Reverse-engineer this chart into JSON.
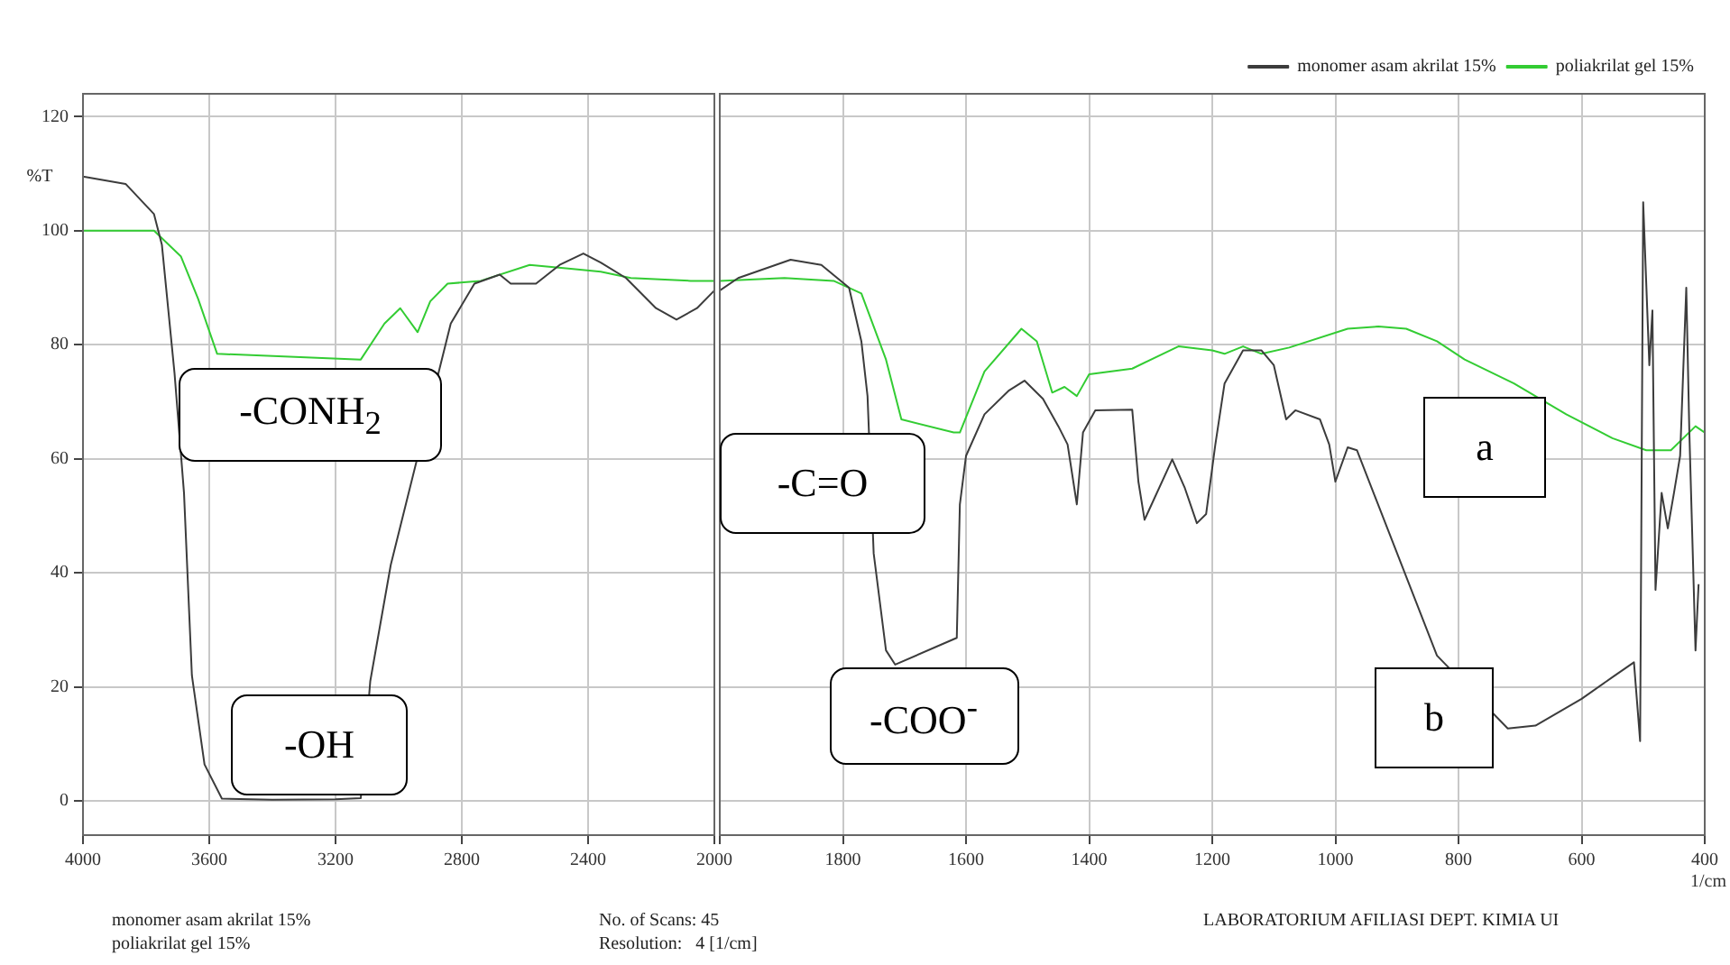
{
  "chart_data": [
    {
      "type": "line",
      "ylabel": "%T",
      "xlim": [
        4000,
        2000
      ],
      "xticks": [
        4000,
        3600,
        3200,
        2800,
        2400,
        2000
      ],
      "ylim": [
        -6,
        124
      ],
      "yticks": [
        0,
        20,
        40,
        60,
        80,
        100,
        120
      ],
      "grid": true,
      "marker": "none",
      "line_style": "solid",
      "series": [
        {
          "color": "#3c3c3c",
          "x": [
            4000,
            3865,
            3775,
            3750,
            3710,
            3680,
            3655,
            3615,
            3560,
            3400,
            3200,
            3120,
            3090,
            3025,
            2950,
            2890,
            2835,
            2760,
            2680,
            2645,
            2565,
            2490,
            2415,
            2360,
            2280,
            2185,
            2120,
            2055,
            2000
          ],
          "values": [
            109.5,
            108.2,
            102.9,
            97.5,
            75,
            54,
            22,
            6.4,
            0.4,
            0.2,
            0.3,
            0.5,
            21,
            41.4,
            null,
            null,
            83.7,
            90.7,
            92.3,
            90.7,
            90.7,
            94,
            96,
            94.4,
            91.7,
            86.4,
            84.4,
            86.4,
            89.5
          ]
        },
        {
          "color": "#33cc33",
          "x": [
            4000,
            3775,
            3690,
            3635,
            3575,
            3450,
            3300,
            3200,
            3120,
            3045,
            2995,
            2940,
            2900,
            2845,
            2740,
            2585,
            2455,
            2360,
            2265,
            2075,
            2000
          ],
          "values": [
            100,
            100,
            95.5,
            88,
            78.4,
            null,
            null,
            null,
            77.4,
            83.7,
            86.4,
            82.2,
            87.6,
            90.7,
            91.2,
            94,
            93.3,
            92.8,
            91.7,
            91.2,
            91.2
          ]
        }
      ],
      "annotations": [
        "-CONH$_{2}$",
        "-OH",
        "monomer asam akrilat 15%",
        "poliakrilat gel 15%",
        "No. of Scans: 45",
        "Resolution:   4 [1/cm]"
      ]
    },
    {
      "type": "line",
      "xlabel": "1/cm",
      "xlim": [
        2000,
        400
      ],
      "xticks": [
        {
          "value": 2000,
          "label": null
        },
        1800,
        1600,
        1400,
        1200,
        1000,
        800,
        600,
        400
      ],
      "ylim": [
        -6,
        124
      ],
      "yticks": [
        0,
        20,
        40,
        60,
        80,
        100,
        120
      ],
      "tick_labels": "x",
      "grid": true,
      "legend": "top right",
      "marker": "none",
      "line_style": "solid",
      "series": [
        {
          "name": "monomer asam akrilat 15%",
          "color": "#3c3c3c",
          "x": [
            2000,
            1970,
            1885,
            1835,
            1790,
            1770,
            1760,
            1750,
            1730,
            1715,
            1640,
            1615,
            1610,
            1600,
            1570,
            1530,
            1505,
            1475,
            1450,
            1435,
            1420,
            1410,
            1390,
            1330,
            1320,
            1310,
            1265,
            1245,
            1225,
            1210,
            1195,
            1180,
            1150,
            1120,
            1100,
            1080,
            1065,
            1025,
            1010,
            1000,
            980,
            965,
            835,
            810,
            720,
            675,
            600,
            550,
            515,
            505,
            500,
            490,
            485,
            480,
            470,
            460,
            450,
            440,
            430,
            425,
            415,
            410
          ],
          "values": [
            89.5,
            91.7,
            94.9,
            94,
            90,
            80.6,
            71,
            43.4,
            26.4,
            23.9,
            null,
            28.6,
            52,
            60.5,
            67.8,
            72,
            73.7,
            70.5,
            65.7,
            62.5,
            52,
            64.6,
            68.5,
            68.6,
            56,
            49.3,
            59.9,
            55,
            48.7,
            50.3,
            62.5,
            73.2,
            79,
            79,
            76.4,
            66.9,
            68.5,
            66.9,
            62.5,
            56,
            62,
            61.5,
            25.5,
            null,
            12.7,
            13.2,
            17.9,
            21.7,
            24.3,
            10.5,
            105,
            76.4,
            86,
            37,
            54,
            47.8,
            54,
            60.5,
            90,
            64.6,
            26.4,
            38
          ]
        },
        {
          "name": "poliakrilat gel 15%",
          "color": "#33cc33",
          "x": [
            2000,
            1895,
            1815,
            1770,
            1730,
            1705,
            1680,
            1620,
            1610,
            1570,
            1510,
            1485,
            1460,
            1440,
            1420,
            1400,
            1330,
            1255,
            1200,
            1180,
            1150,
            1120,
            1075,
            980,
            930,
            885,
            835,
            790,
            710,
            625,
            550,
            495,
            455,
            415,
            400
          ],
          "values": [
            91.2,
            91.7,
            91.2,
            89,
            77.4,
            66.9,
            null,
            64.6,
            64.6,
            75.3,
            82.8,
            80.6,
            71.6,
            72.6,
            71,
            74.8,
            75.8,
            79.7,
            79,
            78.4,
            79.7,
            78.4,
            79.5,
            82.8,
            83.2,
            82.8,
            80.6,
            77.4,
            73.2,
            67.8,
            63.6,
            61.5,
            61.5,
            65.7,
            64.6
          ]
        }
      ],
      "annotations": [
        "-C=O",
        "-COO$^{-}$",
        "a",
        "b",
        "LABORATORIUM AFILIASI DEPT. KIMIA UI"
      ]
    }
  ]
}
